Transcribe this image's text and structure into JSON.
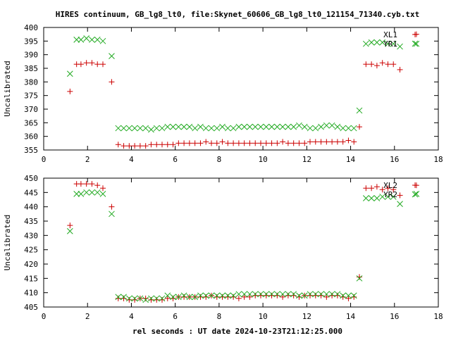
{
  "chart_data": {
    "title": "HIRES continuum, GB_lg8_lt0, file:Skynet_60606_GB_lg8_lt0_121154_71340.cyb.txt",
    "xlabel": "rel seconds : UT date 2024-10-23T21:12:25.000",
    "colors": {
      "xl": "#cc0000",
      "yr": "#22aa22",
      "axis": "#000000"
    },
    "markers": {
      "xl": "plus",
      "yr": "cross"
    },
    "panels": [
      {
        "type": "scatter",
        "ylabel": "Uncalibrated",
        "xlim": [
          0,
          18
        ],
        "ylim": [
          355,
          400
        ],
        "xticks": [
          0,
          2,
          4,
          6,
          8,
          10,
          12,
          14,
          16,
          18
        ],
        "yticks": [
          355,
          360,
          365,
          370,
          375,
          380,
          385,
          390,
          395,
          400
        ],
        "legend_position": "top-right",
        "series": [
          {
            "name": "XL1",
            "x": [
              1.2,
              1.5,
              1.7,
              1.95,
              2.2,
              2.45,
              2.7,
              3.1,
              3.4,
              3.65,
              3.9,
              4.15,
              4.4,
              4.65,
              4.9,
              5.15,
              5.4,
              5.65,
              5.9,
              6.15,
              6.4,
              6.65,
              6.9,
              7.15,
              7.4,
              7.65,
              7.9,
              8.15,
              8.4,
              8.65,
              8.9,
              9.15,
              9.4,
              9.65,
              9.9,
              10.15,
              10.4,
              10.65,
              10.9,
              11.15,
              11.4,
              11.65,
              11.9,
              12.15,
              12.4,
              12.65,
              12.9,
              13.15,
              13.4,
              13.65,
              13.9,
              14.15,
              14.4,
              14.7,
              14.95,
              15.2,
              15.45,
              15.7,
              15.95,
              16.25,
              17.0
            ],
            "y": [
              376.5,
              386.5,
              386.5,
              387.0,
              387.0,
              386.5,
              386.5,
              380.0,
              357.0,
              356.5,
              356.5,
              356.5,
              356.5,
              356.5,
              357.0,
              357.0,
              357.0,
              357.0,
              357.0,
              357.5,
              357.5,
              357.5,
              357.5,
              357.5,
              358.0,
              357.5,
              357.5,
              358.0,
              357.5,
              357.5,
              357.5,
              357.5,
              357.5,
              357.5,
              357.5,
              357.5,
              357.5,
              357.5,
              358.0,
              357.5,
              357.5,
              357.5,
              357.5,
              358.0,
              358.0,
              358.0,
              358.0,
              358.0,
              358.0,
              358.0,
              358.5,
              358.0,
              363.5,
              386.5,
              386.5,
              386.0,
              387.0,
              386.5,
              386.5,
              384.5,
              397.5
            ]
          },
          {
            "name": "YR1",
            "x": [
              1.2,
              1.5,
              1.7,
              1.95,
              2.2,
              2.45,
              2.7,
              3.1,
              3.4,
              3.65,
              3.9,
              4.15,
              4.4,
              4.65,
              4.9,
              5.15,
              5.4,
              5.65,
              5.9,
              6.15,
              6.4,
              6.65,
              6.9,
              7.15,
              7.4,
              7.65,
              7.9,
              8.15,
              8.4,
              8.65,
              8.9,
              9.15,
              9.4,
              9.65,
              9.9,
              10.15,
              10.4,
              10.65,
              10.9,
              11.15,
              11.4,
              11.65,
              11.9,
              12.15,
              12.4,
              12.65,
              12.9,
              13.15,
              13.4,
              13.65,
              13.9,
              14.15,
              14.4,
              14.7,
              14.95,
              15.2,
              15.45,
              15.7,
              15.95,
              16.25,
              17.0
            ],
            "y": [
              383.0,
              395.5,
              395.5,
              396.0,
              395.5,
              395.5,
              395.0,
              389.5,
              363.0,
              363.0,
              363.0,
              363.0,
              363.0,
              363.0,
              362.5,
              363.0,
              363.0,
              363.5,
              363.5,
              363.5,
              363.5,
              363.5,
              363.0,
              363.5,
              363.0,
              363.0,
              363.0,
              363.5,
              363.0,
              363.0,
              363.5,
              363.5,
              363.5,
              363.5,
              363.5,
              363.5,
              363.5,
              363.5,
              363.5,
              363.5,
              363.5,
              364.0,
              363.5,
              363.0,
              363.0,
              363.5,
              364.0,
              364.0,
              363.5,
              363.0,
              363.0,
              363.0,
              369.5,
              394.0,
              394.5,
              394.5,
              394.5,
              394.0,
              394.0,
              393.0,
              394.0
            ]
          }
        ]
      },
      {
        "type": "scatter",
        "ylabel": "Uncalibrated",
        "xlim": [
          0,
          18
        ],
        "ylim": [
          405,
          450
        ],
        "xticks": [
          0,
          2,
          4,
          6,
          8,
          10,
          12,
          14,
          16,
          18
        ],
        "yticks": [
          405,
          410,
          415,
          420,
          425,
          430,
          435,
          440,
          445,
          450
        ],
        "legend_position": "top-right",
        "series": [
          {
            "name": "XL2",
            "x": [
              1.2,
              1.5,
              1.7,
              1.95,
              2.2,
              2.45,
              2.7,
              3.1,
              3.4,
              3.65,
              3.9,
              4.15,
              4.4,
              4.65,
              4.9,
              5.15,
              5.4,
              5.65,
              5.9,
              6.15,
              6.4,
              6.65,
              6.9,
              7.15,
              7.4,
              7.65,
              7.9,
              8.15,
              8.4,
              8.65,
              8.9,
              9.15,
              9.4,
              9.65,
              9.9,
              10.15,
              10.4,
              10.65,
              10.9,
              11.15,
              11.4,
              11.65,
              11.9,
              12.15,
              12.4,
              12.65,
              12.9,
              13.15,
              13.4,
              13.65,
              13.9,
              14.15,
              14.4,
              14.7,
              14.95,
              15.2,
              15.45,
              15.7,
              15.95,
              16.25,
              17.0
            ],
            "y": [
              433.5,
              448.0,
              448.0,
              448.0,
              448.0,
              447.5,
              446.5,
              440.0,
              408.0,
              408.0,
              407.5,
              407.5,
              408.0,
              408.0,
              407.5,
              407.5,
              407.5,
              408.0,
              408.0,
              408.5,
              408.5,
              408.5,
              408.5,
              408.5,
              408.5,
              409.0,
              408.5,
              408.5,
              408.5,
              408.5,
              408.0,
              408.5,
              408.5,
              409.0,
              409.0,
              409.0,
              409.0,
              409.0,
              408.5,
              409.0,
              409.0,
              408.5,
              409.0,
              409.0,
              409.0,
              409.0,
              408.5,
              409.0,
              409.0,
              408.5,
              408.0,
              408.5,
              415.5,
              446.5,
              446.5,
              447.0,
              446.0,
              446.5,
              446.0,
              444.0,
              447.5
            ]
          },
          {
            "name": "YR2",
            "x": [
              1.2,
              1.5,
              1.7,
              1.95,
              2.2,
              2.45,
              2.7,
              3.1,
              3.4,
              3.65,
              3.9,
              4.15,
              4.4,
              4.65,
              4.9,
              5.15,
              5.4,
              5.65,
              5.9,
              6.15,
              6.4,
              6.65,
              6.9,
              7.15,
              7.4,
              7.65,
              7.9,
              8.15,
              8.4,
              8.65,
              8.9,
              9.15,
              9.4,
              9.65,
              9.9,
              10.15,
              10.4,
              10.65,
              10.9,
              11.15,
              11.4,
              11.65,
              11.9,
              12.15,
              12.4,
              12.65,
              12.9,
              13.15,
              13.4,
              13.65,
              13.9,
              14.15,
              14.4,
              14.7,
              14.95,
              15.2,
              15.45,
              15.7,
              15.95,
              16.25,
              17.0
            ],
            "y": [
              431.5,
              444.5,
              444.5,
              445.0,
              445.0,
              445.0,
              444.5,
              437.5,
              408.5,
              408.5,
              408.0,
              408.0,
              408.0,
              407.5,
              408.0,
              408.0,
              408.0,
              409.0,
              408.5,
              408.5,
              409.0,
              408.5,
              408.5,
              409.0,
              409.0,
              409.0,
              409.0,
              409.0,
              409.0,
              409.0,
              409.5,
              409.5,
              409.5,
              409.5,
              409.5,
              409.5,
              409.5,
              409.5,
              409.5,
              409.5,
              409.5,
              409.0,
              409.0,
              409.5,
              409.5,
              409.5,
              409.5,
              409.5,
              409.5,
              409.0,
              409.0,
              409.0,
              415.0,
              443.0,
              443.0,
              443.0,
              443.5,
              443.5,
              443.5,
              441.0,
              444.5
            ]
          }
        ]
      }
    ]
  }
}
